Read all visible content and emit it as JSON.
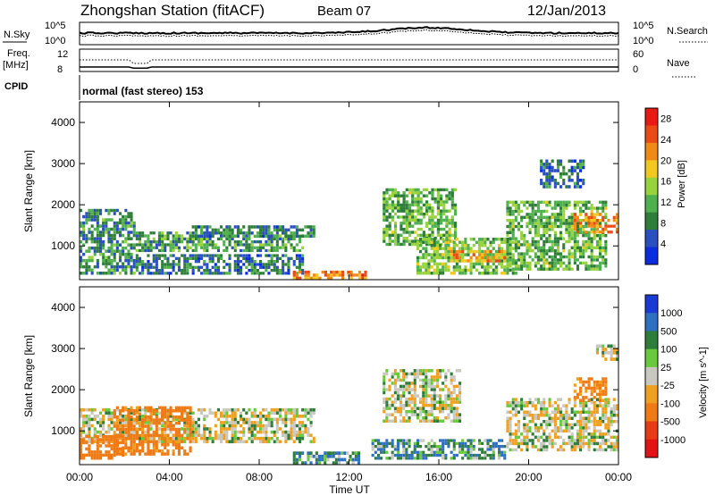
{
  "header": {
    "station": "Zhongshan Station (fitACF)",
    "beam": "Beam 07",
    "date": "12/Jan/2013"
  },
  "top_panels": {
    "nsky_label": "N.Sky",
    "nsky_ticks": [
      "10^5",
      "10^0"
    ],
    "nsearch_label": "N.Search",
    "nsearch_ticks": [
      "10^5",
      "10^0"
    ],
    "freq_label_line1": "Freq.",
    "freq_label_line2": "[MHz]",
    "freq_ticks": [
      "12",
      "8"
    ],
    "nave_label": "Nave",
    "nave_ticks": [
      "60",
      "0"
    ],
    "cpid_label": "CPID",
    "cpid_value": "normal (fast stereo) 153"
  },
  "x_axis": {
    "label": "Time UT",
    "ticks": [
      "00:00",
      "04:00",
      "08:00",
      "12:00",
      "16:00",
      "20:00",
      "00:00"
    ]
  },
  "colors": {
    "power": [
      "#0a2de0",
      "#2a4fc0",
      "#2e7d3a",
      "#50b04e",
      "#98d23c",
      "#f0c81e",
      "#f08a14",
      "#ea4a14",
      "#e81a14"
    ],
    "velocity": [
      "#1a3ad6",
      "#2f6fc0",
      "#2e7d3a",
      "#6ac83c",
      "#c8c8c0",
      "#f0a020",
      "#f07a14",
      "#e83a14",
      "#e01414"
    ]
  },
  "chart_data": [
    {
      "type": "heatmap",
      "panel": "power",
      "ylabel": "Slant Range [km]",
      "yticks": [
        "1000",
        "2000",
        "3000",
        "4000"
      ],
      "ylim": [
        180,
        4500
      ],
      "xlim": [
        0,
        24
      ],
      "colorbar_label": "Power [dB]",
      "colorbar_ticks": [
        "4",
        "8",
        "12",
        "16",
        "20",
        "24",
        "28"
      ],
      "clim": [
        0,
        30
      ],
      "regions": [
        {
          "t0": 0.0,
          "t1": 2.5,
          "r0": 300,
          "r1": 1900,
          "level": 9
        },
        {
          "t0": 2.5,
          "t1": 10.0,
          "r0": 850,
          "r1": 1350,
          "level": 10
        },
        {
          "t0": 2.5,
          "t1": 10.0,
          "r0": 300,
          "r1": 800,
          "level": 7
        },
        {
          "t0": 5.0,
          "t1": 10.5,
          "r0": 1200,
          "r1": 1500,
          "level": 8
        },
        {
          "t0": 9.5,
          "t1": 12.8,
          "r0": 180,
          "r1": 400,
          "level": 22
        },
        {
          "t0": 13.5,
          "t1": 16.8,
          "r0": 1000,
          "r1": 2400,
          "level": 12
        },
        {
          "t0": 15.0,
          "t1": 19.5,
          "r0": 300,
          "r1": 1200,
          "level": 13
        },
        {
          "t0": 16.5,
          "t1": 19.0,
          "r0": 600,
          "r1": 900,
          "level": 20
        },
        {
          "t0": 19.0,
          "t1": 23.5,
          "r0": 400,
          "r1": 2100,
          "level": 12
        },
        {
          "t0": 22.0,
          "t1": 24.0,
          "r0": 1300,
          "r1": 1800,
          "level": 22
        },
        {
          "t0": 20.5,
          "t1": 22.5,
          "r0": 2400,
          "r1": 3100,
          "level": 7
        }
      ]
    },
    {
      "type": "heatmap",
      "panel": "velocity",
      "ylabel": "Slant Range [km]",
      "yticks": [
        "1000",
        "2000",
        "3000",
        "4000"
      ],
      "ylim": [
        180,
        4500
      ],
      "xlim": [
        0,
        24
      ],
      "colorbar_label": "Velocity [m s^-1]",
      "colorbar_ticks": [
        "1000",
        "500",
        "100",
        "25",
        "-25",
        "-100",
        "-500",
        "-1000"
      ],
      "regions": [
        {
          "t0": 0.0,
          "t1": 10.5,
          "r0": 700,
          "r1": 1550,
          "velocity": 0
        },
        {
          "t0": 1.5,
          "t1": 5.0,
          "r0": 400,
          "r1": 1600,
          "velocity": -150
        },
        {
          "t0": 0.0,
          "t1": 2.0,
          "r0": 300,
          "r1": 900,
          "velocity": -200
        },
        {
          "t0": 9.5,
          "t1": 12.5,
          "r0": 180,
          "r1": 500,
          "velocity": 80
        },
        {
          "t0": 13.5,
          "t1": 17.0,
          "r0": 1200,
          "r1": 2500,
          "velocity": 0
        },
        {
          "t0": 13.0,
          "t1": 19.0,
          "r0": 300,
          "r1": 800,
          "velocity": 80
        },
        {
          "t0": 19.0,
          "t1": 24.0,
          "r0": 500,
          "r1": 1800,
          "velocity": 0
        },
        {
          "t0": 22.0,
          "t1": 23.5,
          "r0": 1700,
          "r1": 2300,
          "velocity": -150
        },
        {
          "t0": 23.0,
          "t1": 24.0,
          "r0": 2700,
          "r1": 3100,
          "velocity": 0
        }
      ]
    }
  ]
}
